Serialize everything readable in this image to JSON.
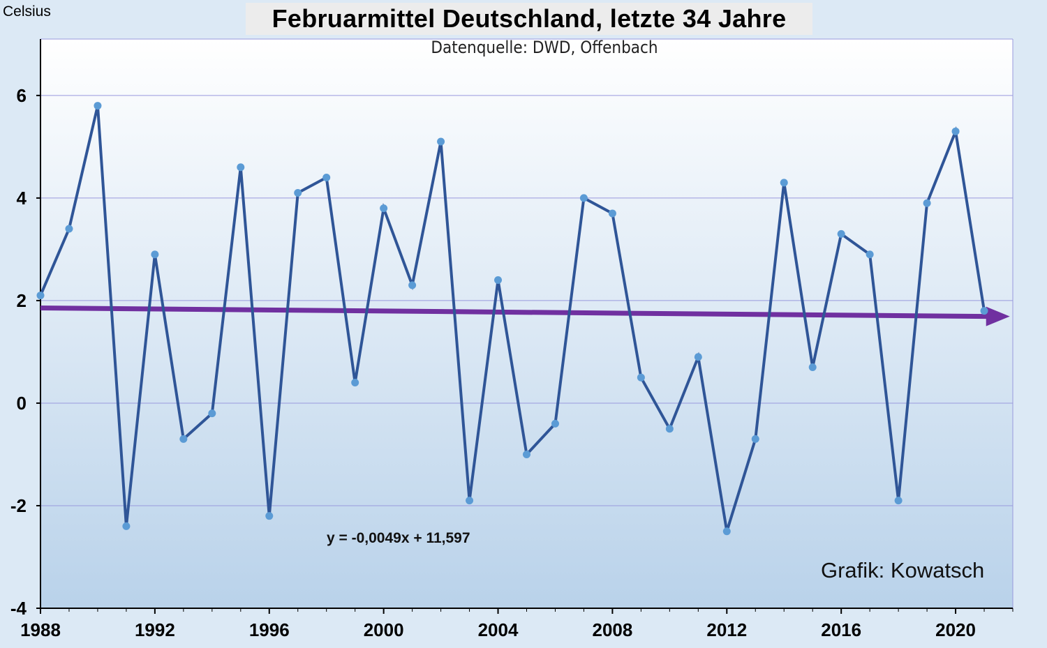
{
  "chart_data": {
    "type": "line",
    "title": "Februarmittel Deutschland, letzte 34 Jahre",
    "subtitle": "Datenquelle: DWD, Offenbach",
    "ylabel": "Celsius",
    "xlabel": "",
    "xlim": [
      1988,
      2022
    ],
    "ylim": [
      -4,
      7.1
    ],
    "x_ticks": [
      1988,
      1992,
      1996,
      2000,
      2004,
      2008,
      2012,
      2016,
      2020
    ],
    "y_ticks": [
      -4,
      -2,
      0,
      2,
      4,
      6
    ],
    "grid": true,
    "x": [
      1988,
      1989,
      1990,
      1991,
      1992,
      1993,
      1994,
      1995,
      1996,
      1997,
      1998,
      1999,
      2000,
      2001,
      2002,
      2003,
      2004,
      2005,
      2006,
      2007,
      2008,
      2009,
      2010,
      2011,
      2012,
      2013,
      2014,
      2015,
      2016,
      2017,
      2018,
      2019,
      2020,
      2021
    ],
    "series": [
      {
        "values": [
          2.1,
          3.4,
          5.8,
          -2.4,
          2.9,
          -0.7,
          -0.2,
          4.6,
          -2.2,
          4.1,
          4.4,
          0.4,
          3.8,
          2.3,
          5.1,
          -1.9,
          2.4,
          -1.0,
          -0.4,
          4.0,
          3.7,
          0.5,
          -0.5,
          0.9,
          -2.5,
          -0.7,
          4.3,
          0.7,
          3.3,
          2.9,
          -1.9,
          3.9,
          5.3,
          1.8
        ],
        "color": "#2f5597",
        "marker_color": "#5b9bd5"
      }
    ],
    "trendline": {
      "label": "y = -0,0049x + 11,597",
      "slope": -0.0049,
      "intercept": 11.597,
      "color": "#7030a0",
      "style": "arrow"
    },
    "annotation": "Grafik: Kowatsch",
    "colors": {
      "background": "#dce9f5",
      "grid": "#9999dd"
    }
  }
}
